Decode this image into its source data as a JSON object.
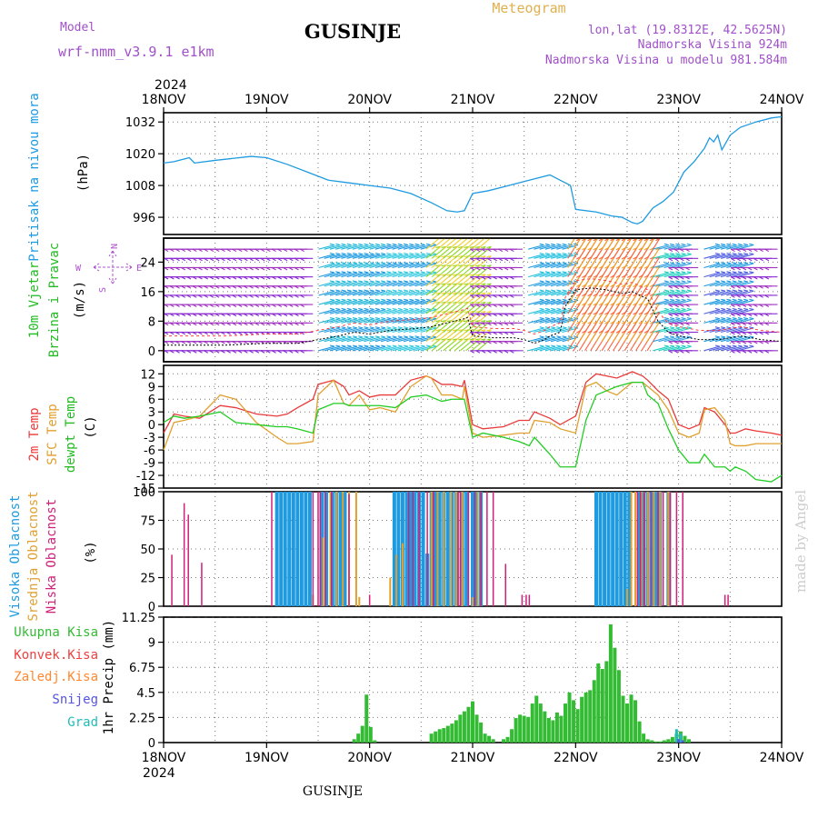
{
  "header": {
    "model_label": "Model",
    "model_name": "wrf-nmm_v3.9.1 e1km",
    "title": "GUSINJE",
    "subtitle": "Meteogram",
    "lonlat": "lon,lat (19.8312E, 42.5625N)",
    "altitude": "Nadmorska Visina 924m",
    "model_altitude": "Nadmorska Visina u modelu 981.584m",
    "year_top": "2024",
    "year_bottom": "2024",
    "footer": "GUSINJE",
    "watermark": "made by Angel"
  },
  "colors": {
    "pressure": "#1e9be0",
    "wind_label": "#22bb22",
    "wind_dir": "#b050d0",
    "temp2m": "#e83a3a",
    "sfc": "#e0a030",
    "dew": "#22cc22",
    "high_cloud": "#1e9be0",
    "mid_cloud": "#e0a030",
    "low_cloud": "#d0207a",
    "rain_total": "#33bb33",
    "rain_conv": "#ee4040",
    "rain_frz": "#ff8830",
    "snow": "#5555dd",
    "graupel": "#22bbbb"
  },
  "chart_data": {
    "type": "meteogram",
    "x_ticks": [
      "18NOV",
      "19NOV",
      "20NOV",
      "21NOV",
      "22NOV",
      "23NOV",
      "24NOV"
    ],
    "x_days_range": [
      0,
      6
    ],
    "panels": [
      {
        "id": "pressure",
        "type": "line",
        "ylabel": "(hPa)",
        "side_labels": [
          "Pritisak na nivou mora"
        ],
        "yticks": [
          996,
          1008,
          1020,
          1032
        ],
        "ylim": [
          989.5,
          1035.5
        ],
        "x": [
          0,
          0.1,
          0.25,
          0.3,
          0.5,
          0.85,
          1.0,
          1.2,
          1.4,
          1.6,
          1.8,
          2.0,
          2.2,
          2.4,
          2.6,
          2.75,
          2.85,
          2.92,
          3.0,
          3.15,
          3.35,
          3.55,
          3.75,
          3.95,
          4.0,
          4.2,
          4.35,
          4.45,
          4.55,
          4.6,
          4.65,
          4.75,
          4.85,
          4.95,
          5.05,
          5.15,
          5.25,
          5.3,
          5.34,
          5.38,
          5.42,
          5.5,
          5.6,
          5.75,
          5.9,
          6.0
        ],
        "values": [
          1016.5,
          1017,
          1018.5,
          1016.5,
          1017.5,
          1019,
          1018.5,
          1016,
          1013,
          1010,
          1009,
          1008,
          1007,
          1005,
          1001.5,
          998.5,
          998,
          998.5,
          1005,
          1006,
          1008,
          1010,
          1012,
          1008,
          999,
          998,
          996.5,
          996,
          994,
          993.5,
          994.5,
          999.5,
          1002,
          1005.5,
          1013,
          1017,
          1022,
          1026,
          1024.5,
          1027,
          1021.5,
          1027,
          1030,
          1032,
          1033.5,
          1034
        ]
      },
      {
        "id": "wind",
        "type": "line",
        "ylabel": "(m/s)",
        "side_labels": [
          "10m Vjetar",
          "Brzina i Pravac"
        ],
        "direction_legend": [
          "W",
          "N",
          "E",
          "S"
        ],
        "yticks": [
          0,
          8,
          16,
          24
        ],
        "ylim": [
          -3,
          30.5
        ],
        "x": [
          0,
          0.3,
          0.6,
          1.0,
          1.3,
          1.5,
          1.7,
          1.85,
          2.0,
          2.2,
          2.45,
          2.6,
          2.75,
          2.9,
          2.95,
          3.0,
          3.2,
          3.4,
          3.5,
          3.6,
          3.7,
          3.75,
          3.85,
          3.9,
          4.0,
          4.15,
          4.3,
          4.45,
          4.55,
          4.7,
          4.8,
          4.9,
          5.0,
          5.2,
          5.4,
          5.6,
          5.8,
          6.0
        ],
        "values": [
          1.5,
          1.5,
          1.5,
          2,
          2,
          3,
          4,
          5,
          4.5,
          5.5,
          6,
          6.5,
          7.5,
          8.5,
          9,
          4,
          3.5,
          3.5,
          3,
          2,
          3,
          4,
          5,
          12,
          16.5,
          17,
          16.5,
          15.5,
          16,
          14,
          8,
          5,
          4,
          3,
          3,
          4,
          3,
          2.5
        ]
      },
      {
        "id": "temperature",
        "type": "line",
        "ylabel": "(C)",
        "side_labels": [
          "2m Temp",
          "SFC Temp",
          "dewpt Temp"
        ],
        "yticks": [
          12,
          9,
          6,
          3,
          0,
          -3,
          -6,
          -9,
          -12,
          -15
        ],
        "ylim": [
          -15,
          14
        ],
        "x": [
          0,
          0.1,
          0.2,
          0.35,
          0.55,
          0.7,
          0.9,
          1.1,
          1.2,
          1.3,
          1.45,
          1.5,
          1.65,
          1.75,
          1.8,
          1.9,
          2.0,
          2.1,
          2.25,
          2.4,
          2.55,
          2.6,
          2.7,
          2.8,
          2.9,
          2.92,
          3.0,
          3.1,
          3.3,
          3.45,
          3.55,
          3.6,
          3.75,
          3.85,
          4.0,
          4.1,
          4.2,
          4.3,
          4.4,
          4.55,
          4.65,
          4.7,
          4.8,
          4.9,
          5.0,
          5.1,
          5.2,
          5.25,
          5.35,
          5.45,
          5.5,
          5.55,
          5.65,
          5.75,
          5.9,
          6.0
        ],
        "series": [
          {
            "name": "2m Temp",
            "values": [
              -2,
              2.5,
              2,
              1.5,
              4.5,
              4,
              2.5,
              2,
              2.5,
              4,
              6,
              9.5,
              10.5,
              9,
              7,
              8,
              6.5,
              7,
              7,
              10.5,
              11.5,
              11,
              9.5,
              9.5,
              9,
              10.5,
              0,
              -1,
              -0.5,
              1,
              1,
              3,
              1.5,
              0,
              2,
              10,
              12,
              11.5,
              11,
              12.5,
              11.5,
              10.5,
              8,
              6,
              0,
              -1,
              0,
              4,
              3,
              0,
              -2,
              -2,
              -1,
              -1.5,
              -2,
              -2.5
            ]
          },
          {
            "name": "SFC Temp",
            "values": [
              -6,
              0.5,
              1,
              2,
              7,
              6,
              0.5,
              -3,
              -4.5,
              -4.5,
              -4,
              7,
              10.5,
              5,
              4.5,
              7,
              3.5,
              4,
              3,
              9,
              11.5,
              11,
              7,
              7,
              6,
              9,
              -2,
              -3,
              -2.5,
              -2,
              -2,
              1,
              0.5,
              -1,
              -2,
              9,
              10,
              8,
              7,
              10,
              10,
              9,
              7,
              3.5,
              -2,
              -3,
              -2,
              3.5,
              4,
              1,
              -4.5,
              -5,
              -5,
              -4.5,
              -4.5,
              -4.5
            ]
          },
          {
            "name": "dewpt Temp",
            "values": [
              0.5,
              2,
              1.5,
              2,
              3,
              0.5,
              0,
              -0.5,
              -0.5,
              -1,
              -2,
              3.5,
              5,
              5,
              4.5,
              4.5,
              4.5,
              4.5,
              4,
              6.5,
              7,
              6.5,
              5.5,
              6,
              6,
              6,
              -3,
              -2,
              -3,
              -4,
              -5,
              -3,
              -7,
              -10,
              -10,
              1,
              7,
              8,
              9,
              10,
              10,
              7,
              5,
              -1,
              -6,
              -9,
              -9,
              -7,
              -10,
              -10,
              -11,
              -10,
              -11,
              -13,
              -13.5,
              -12
            ]
          }
        ]
      },
      {
        "id": "clouds",
        "type": "bar",
        "ylabel": "(%)",
        "side_labels": [
          "Visoka Oblacnost",
          "Srednja Oblacnost",
          "Niska Oblacnost"
        ],
        "yticks": [
          0,
          25,
          50,
          75,
          100
        ],
        "ylim": [
          0,
          100
        ],
        "low": {
          "x": [
            0.08,
            0.2,
            0.24,
            0.37,
            1.05,
            1.45,
            1.5,
            1.52,
            1.57,
            1.63,
            1.8,
            2.0,
            2.38,
            2.42,
            2.48,
            2.56,
            2.62,
            2.86,
            2.88,
            2.96,
            3.02,
            3.08,
            3.14,
            3.2,
            3.32,
            3.48,
            3.52,
            3.55,
            4.6,
            4.63,
            4.67,
            4.73,
            4.8,
            4.85,
            4.92,
            4.98,
            5.04,
            5.45,
            5.48
          ],
          "values": [
            45,
            90,
            80,
            38,
            100,
            100,
            100,
            100,
            100,
            100,
            98,
            10,
            100,
            100,
            100,
            100,
            100,
            100,
            100,
            100,
            100,
            100,
            100,
            100,
            37,
            10,
            10,
            10,
            100,
            100,
            100,
            100,
            100,
            100,
            100,
            100,
            100,
            10,
            10
          ]
        },
        "mid": {
          "x": [
            1.45,
            1.55,
            1.62,
            1.68,
            1.74,
            1.8,
            1.87,
            1.9,
            2.2,
            2.26,
            2.32,
            2.6,
            2.66,
            2.72,
            2.79,
            2.84,
            2.9,
            3.0,
            3.05,
            4.5,
            4.54,
            4.58,
            4.64,
            4.7,
            4.76,
            4.82,
            4.9
          ],
          "values": [
            10,
            60,
            100,
            100,
            100,
            100,
            100,
            8,
            25,
            45,
            55,
            100,
            100,
            100,
            100,
            100,
            100,
            8,
            100,
            15,
            100,
            100,
            100,
            100,
            100,
            100,
            100
          ]
        },
        "high": {
          "x": [
            1.1,
            1.14,
            1.18,
            1.22,
            1.26,
            1.3,
            1.34,
            1.38,
            1.42,
            1.54,
            1.58,
            1.64,
            1.68,
            1.72,
            1.76,
            2.24,
            2.28,
            2.32,
            2.36,
            2.4,
            2.44,
            2.48,
            2.52,
            2.56,
            2.6,
            2.64,
            2.68,
            2.72,
            2.76,
            2.8,
            2.84,
            2.9,
            2.94,
            3.0,
            3.04,
            3.08,
            4.2,
            4.24,
            4.28,
            4.32,
            4.36,
            4.4,
            4.44,
            4.48,
            4.52,
            4.62,
            4.66,
            4.7,
            4.74,
            4.78,
            4.82,
            4.9
          ],
          "values": [
            100,
            100,
            100,
            100,
            100,
            100,
            100,
            100,
            100,
            100,
            100,
            100,
            100,
            100,
            100,
            100,
            100,
            100,
            100,
            100,
            100,
            100,
            100,
            46,
            100,
            100,
            100,
            100,
            100,
            100,
            100,
            100,
            100,
            100,
            100,
            100,
            100,
            100,
            100,
            100,
            100,
            100,
            100,
            100,
            100,
            100,
            100,
            100,
            100,
            100,
            100,
            100
          ]
        }
      },
      {
        "id": "precip",
        "type": "bar",
        "ylabel": "1hr Precip (mm)",
        "side_labels": [
          "Ukupna Kisa",
          "Konvek.Kisa",
          "Zaledj.Kisa",
          "Snijeg",
          "Grad"
        ],
        "yticks": [
          0,
          2.25,
          4.5,
          6.75,
          9,
          11.25
        ],
        "ylim": [
          0,
          11.25
        ],
        "total": {
          "x": [
            1.85,
            1.89,
            1.93,
            1.97,
            2.01,
            2.05,
            2.6,
            2.64,
            2.68,
            2.72,
            2.76,
            2.8,
            2.84,
            2.88,
            2.92,
            2.96,
            3.0,
            3.04,
            3.08,
            3.12,
            3.16,
            3.2,
            3.3,
            3.34,
            3.38,
            3.42,
            3.46,
            3.5,
            3.54,
            3.58,
            3.62,
            3.66,
            3.7,
            3.74,
            3.78,
            3.82,
            3.86,
            3.9,
            3.94,
            3.98,
            4.02,
            4.06,
            4.1,
            4.14,
            4.18,
            4.22,
            4.26,
            4.3,
            4.34,
            4.38,
            4.42,
            4.46,
            4.5,
            4.54,
            4.58,
            4.62,
            4.66,
            4.7,
            4.74,
            4.78,
            4.82,
            4.86,
            4.9,
            4.94,
            4.98,
            5.02,
            5.06,
            5.1
          ],
          "values": [
            0.3,
            0.8,
            1.5,
            4.3,
            1.4,
            0.2,
            0.8,
            1.0,
            1.2,
            1.3,
            1.5,
            1.7,
            2.0,
            2.5,
            2.8,
            3.2,
            3.7,
            2.5,
            1.8,
            0.8,
            0.6,
            0.3,
            0.3,
            0.5,
            1.2,
            2.2,
            2.5,
            2.4,
            2.3,
            3.5,
            4.2,
            3.5,
            2.8,
            2.2,
            2.0,
            2.7,
            2.4,
            3.5,
            4.5,
            3.8,
            3.0,
            4.1,
            4.5,
            4.7,
            5.6,
            7.1,
            6.6,
            7.3,
            10.6,
            8.5,
            6.5,
            4.2,
            3.5,
            4.3,
            3.8,
            1.9,
            0.8,
            0.3,
            0.2,
            0.1,
            0.1,
            0.2,
            0.3,
            0.5,
            0.8,
            1.0,
            0.6,
            0.3
          ]
        },
        "conv": {
          "x": [],
          "values": []
        },
        "snow": {
          "x": [
            5.0,
            5.04
          ],
          "values": [
            0.3,
            0.2
          ]
        },
        "graupel": {
          "x": [
            4.98,
            5.02
          ],
          "values": [
            1.2,
            0.8
          ]
        }
      }
    ]
  }
}
